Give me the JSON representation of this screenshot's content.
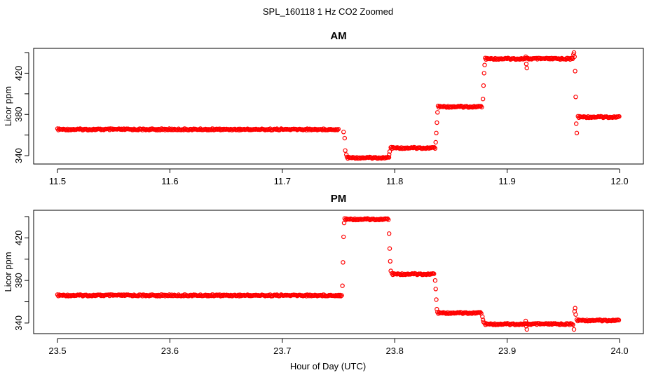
{
  "figure": {
    "title": "SPL_160118  1 Hz CO2 Zoomed",
    "xlabel": "Hour of Day (UTC)"
  },
  "colors": {
    "points": "#ff0000",
    "axes": "#000000"
  },
  "chart_data": [
    {
      "type": "scatter",
      "title": "AM",
      "xlabel": "",
      "ylabel": "Licor ppm",
      "xlim": [
        11.5,
        12.0
      ],
      "ylim": [
        336,
        440
      ],
      "xticks": [
        "11.5",
        "11.6",
        "11.7",
        "11.8",
        "11.9",
        "12.0"
      ],
      "yticks": [
        "340",
        "380",
        "420"
      ],
      "grid": false,
      "legend": "none",
      "marker": "open-circle",
      "segments": [
        {
          "x": [
            11.5,
            11.75
          ],
          "y": 365.5
        },
        {
          "x": [
            11.7545,
            11.7555,
            11.756,
            11.757
          ],
          "y": [
            363,
            357,
            345,
            341
          ]
        },
        {
          "x": [
            11.7575,
            11.795
          ],
          "y": 338
        },
        {
          "x": [
            11.795,
            11.7955,
            11.7965
          ],
          "y": [
            341,
            344,
            348
          ]
        },
        {
          "x": [
            11.797,
            11.836
          ],
          "y": [
            347.5,
            347.5
          ]
        },
        {
          "x": [
            11.8365,
            11.837,
            11.8375,
            11.838
          ],
          "y": [
            353,
            362,
            372,
            382
          ]
        },
        {
          "x": [
            11.8385,
            11.878
          ],
          "y": [
            387.5,
            387.5
          ]
        },
        {
          "x": [
            11.8785,
            11.879,
            11.8795,
            11.88
          ],
          "y": [
            395,
            408,
            420,
            428
          ]
        },
        {
          "x": [
            11.8805,
            11.959
          ],
          "y": [
            434,
            434
          ]
        },
        {
          "x": [
            11.9165,
            11.917,
            11.9175
          ],
          "y": [
            436,
            429,
            425
          ]
        },
        {
          "x": [
            11.959,
            11.9595,
            11.96,
            11.9605,
            11.961,
            11.9615,
            11.962
          ],
          "y": [
            438,
            440,
            436,
            422,
            397,
            371,
            362
          ]
        },
        {
          "x": [
            11.963,
            12.0
          ],
          "y": [
            377.5,
            377.5
          ]
        }
      ]
    },
    {
      "type": "scatter",
      "title": "PM",
      "xlabel": "",
      "ylabel": "Licor ppm",
      "xlim": [
        23.5,
        24.0
      ],
      "ylim": [
        334,
        442
      ],
      "xticks": [
        "23.5",
        "23.6",
        "23.7",
        "23.8",
        "23.9",
        "24.0"
      ],
      "yticks": [
        "340",
        "380",
        "420"
      ],
      "grid": false,
      "legend": "none",
      "marker": "open-circle",
      "segments": [
        {
          "x": [
            23.5,
            23.753
          ],
          "y": 366
        },
        {
          "x": [
            23.7535,
            23.754,
            23.7545,
            23.755
          ],
          "y": [
            375,
            397,
            421,
            434
          ]
        },
        {
          "x": [
            23.7555,
            23.7945
          ],
          "y": [
            437.5,
            437.5
          ]
        },
        {
          "x": [
            23.795,
            23.7955,
            23.796,
            23.7965
          ],
          "y": [
            424,
            410,
            398,
            389
          ]
        },
        {
          "x": [
            23.7975,
            23.8355
          ],
          "y": [
            386,
            386
          ]
        },
        {
          "x": [
            23.836,
            23.8365,
            23.837,
            23.8375
          ],
          "y": [
            380,
            372,
            362,
            353
          ]
        },
        {
          "x": [
            23.838,
            23.8775
          ],
          "y": [
            349.5,
            349.5
          ]
        },
        {
          "x": [
            23.878,
            23.8785,
            23.879
          ],
          "y": [
            346,
            343,
            341
          ]
        },
        {
          "x": [
            23.88,
            23.959
          ],
          "y": [
            339,
            339
          ]
        },
        {
          "x": [
            23.9165,
            23.917,
            23.9175
          ],
          "y": [
            342,
            337,
            334
          ]
        },
        {
          "x": [
            23.9595,
            23.96,
            23.9605,
            23.961
          ],
          "y": [
            334,
            351,
            354,
            348
          ]
        },
        {
          "x": [
            23.962,
            24.0
          ],
          "y": [
            342.5,
            342.5
          ]
        }
      ]
    }
  ]
}
